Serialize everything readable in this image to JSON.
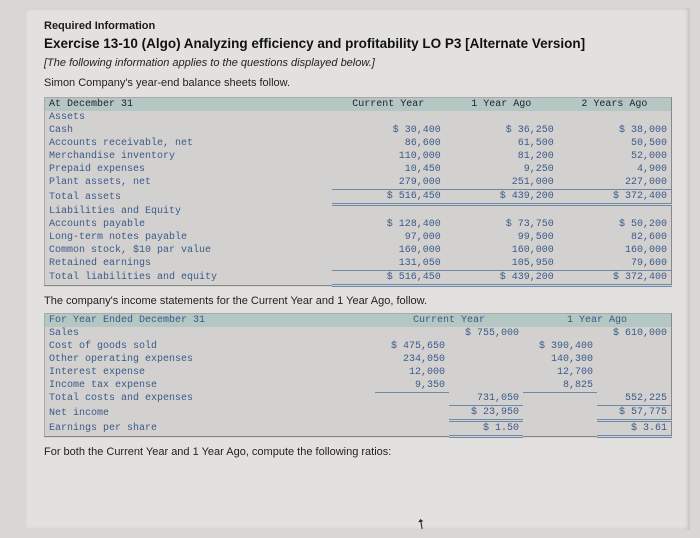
{
  "header": {
    "required": "Required Information",
    "title": "Exercise 13-10 (Algo) Analyzing efficiency and profitability LO P3 [Alternate Version]",
    "italic": "[The following information applies to the questions displayed below.]",
    "lead": "Simon Company's year-end balance sheets follow."
  },
  "bs": {
    "date": "At December 31",
    "cols": [
      "Current Year",
      "1 Year Ago",
      "2 Years Ago"
    ],
    "assets_h": "Assets",
    "rows_a": [
      {
        "l": "Cash",
        "v": [
          "$ 30,400",
          "$ 36,250",
          "$ 38,000"
        ]
      },
      {
        "l": "Accounts receivable, net",
        "v": [
          "86,600",
          "61,500",
          "50,500"
        ]
      },
      {
        "l": "Merchandise inventory",
        "v": [
          "110,000",
          "81,200",
          "52,000"
        ]
      },
      {
        "l": "Prepaid expenses",
        "v": [
          "10,450",
          "9,250",
          "4,900"
        ]
      },
      {
        "l": "Plant assets, net",
        "v": [
          "279,000",
          "251,000",
          "227,000"
        ]
      }
    ],
    "tot_a": {
      "l": "Total assets",
      "v": [
        "$ 516,450",
        "$ 439,200",
        "$ 372,400"
      ]
    },
    "liab_h": "Liabilities and Equity",
    "rows_l": [
      {
        "l": "Accounts payable",
        "v": [
          "$ 128,400",
          "$ 73,750",
          "$ 50,200"
        ]
      },
      {
        "l": "Long-term notes payable",
        "v": [
          "97,000",
          "99,500",
          "82,600"
        ]
      },
      {
        "l": "Common stock, $10 par value",
        "v": [
          "160,000",
          "160,000",
          "160,000"
        ]
      },
      {
        "l": "Retained earnings",
        "v": [
          "131,050",
          "105,950",
          "79,600"
        ]
      }
    ],
    "tot_l": {
      "l": "Total liabilities and equity",
      "v": [
        "$ 516,450",
        "$ 439,200",
        "$ 372,400"
      ]
    }
  },
  "mid": "The company's income statements for the Current Year and 1 Year Ago, follow.",
  "is": {
    "date": "For Year Ended December 31",
    "cols": [
      "Current Year",
      "1 Year Ago"
    ],
    "sales": {
      "l": "Sales",
      "v": [
        "$ 755,000",
        "$ 610,000"
      ]
    },
    "rows": [
      {
        "l": "Cost of goods sold",
        "a": "$ 475,650",
        "b": "$ 390,400"
      },
      {
        "l": "Other operating expenses",
        "a": "234,050",
        "b": "140,300"
      },
      {
        "l": "Interest expense",
        "a": "12,000",
        "b": "12,700"
      },
      {
        "l": "Income tax expense",
        "a": "9,350",
        "b": "8,825"
      }
    ],
    "tc": {
      "l": "Total costs and expenses",
      "v": [
        "731,050",
        "552,225"
      ]
    },
    "ni": {
      "l": "Net income",
      "v": [
        "$ 23,950",
        "$ 57,775"
      ]
    },
    "eps": {
      "l": "Earnings per share",
      "v": [
        "$ 1.50",
        "$ 3.61"
      ]
    }
  },
  "foot": "For both the Current Year and 1 Year Ago, compute the following ratios:"
}
